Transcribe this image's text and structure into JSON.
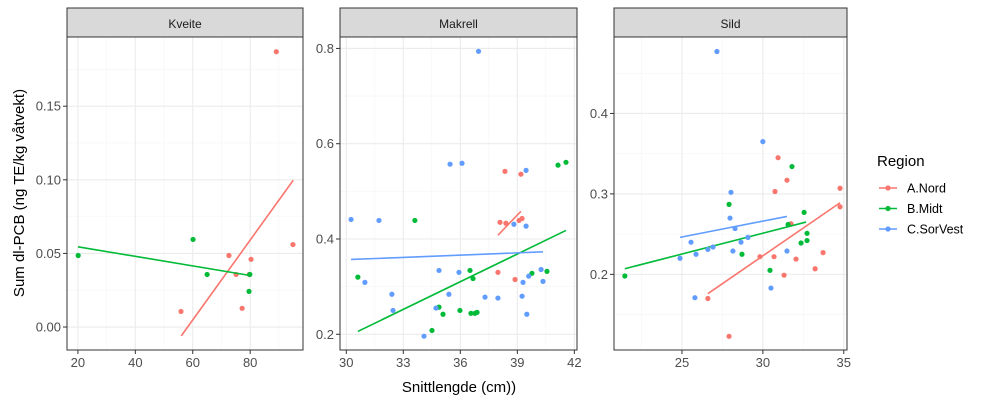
{
  "chart_data": [
    {
      "type": "scatter",
      "title": "Kveite",
      "xlim": [
        16.2,
        98.4
      ],
      "ylim": [
        -0.0156,
        0.197
      ],
      "xticks": [
        20,
        40,
        60,
        80
      ],
      "yticks": [
        0,
        0.05,
        0.1,
        0.15
      ],
      "ytick_labels": [
        "0.00",
        "0.05",
        "0.10",
        "0.15"
      ],
      "xminor": [
        30,
        50,
        70,
        90
      ],
      "yminor": [
        0.025,
        0.075,
        0.125,
        0.175
      ],
      "series": [
        {
          "name": "A.Nord",
          "points": [
            [
              89.1,
              0.187
            ],
            [
              94.9,
              0.056
            ],
            [
              72.6,
              0.0486
            ],
            [
              80.3,
              0.046
            ],
            [
              75.1,
              0.0357
            ],
            [
              79.7,
              0.0357
            ],
            [
              77.2,
              0.0127
            ],
            [
              55.9,
              0.0106
            ]
          ],
          "fit": [
            [
              56,
              -0.006
            ],
            [
              95,
              0.0997
            ]
          ]
        },
        {
          "name": "B.Midt",
          "points": [
            [
              20.1,
              0.0486
            ],
            [
              60.1,
              0.0595
            ],
            [
              65,
              0.0357
            ],
            [
              79.9,
              0.0357
            ],
            [
              79.6,
              0.0242
            ]
          ],
          "fit": [
            [
              20,
              0.0545
            ],
            [
              80,
              0.035
            ]
          ]
        },
        {
          "name": "C.SorVest",
          "points": [],
          "fit": null
        }
      ]
    },
    {
      "type": "scatter",
      "title": "Makrell",
      "xlim": [
        29.67,
        42.14
      ],
      "ylim": [
        0.167,
        0.824
      ],
      "xticks": [
        30,
        33,
        36,
        39,
        42
      ],
      "yticks": [
        0.2,
        0.4,
        0.6,
        0.8
      ],
      "ytick_labels": [
        "0.2",
        "0.4",
        "0.6",
        "0.8"
      ],
      "xminor": [
        31.5,
        34.5,
        37.5,
        40.5
      ],
      "yminor": [
        0.3,
        0.5,
        0.7
      ],
      "series": [
        {
          "name": "A.Nord",
          "points": [
            [
              38.35,
              0.542
            ],
            [
              39.19,
              0.536
            ],
            [
              38.09,
              0.435
            ],
            [
              38.4,
              0.433
            ],
            [
              39.09,
              0.439
            ],
            [
              39.25,
              0.443
            ],
            [
              37.98,
              0.33
            ],
            [
              38.88,
              0.315
            ]
          ],
          "fit": [
            [
              37.98,
              0.408
            ],
            [
              39.19,
              0.458
            ]
          ]
        },
        {
          "name": "B.Midt",
          "points": [
            [
              30.61,
              0.32
            ],
            [
              33.61,
              0.439
            ],
            [
              34.88,
              0.257
            ],
            [
              35.09,
              0.242
            ],
            [
              34.51,
              0.208
            ],
            [
              35.98,
              0.25
            ],
            [
              36.51,
              0.334
            ],
            [
              36.67,
              0.317
            ],
            [
              36.56,
              0.244
            ],
            [
              36.77,
              0.244
            ],
            [
              36.88,
              0.246
            ],
            [
              39.77,
              0.328
            ],
            [
              40.56,
              0.332
            ],
            [
              41.14,
              0.555
            ],
            [
              41.56,
              0.561
            ]
          ],
          "fit": [
            [
              30.61,
              0.206
            ],
            [
              41.56,
              0.418
            ]
          ]
        },
        {
          "name": "C.SorVest",
          "points": [
            [
              30.25,
              0.441
            ],
            [
              31.72,
              0.439
            ],
            [
              30.98,
              0.309
            ],
            [
              32.4,
              0.284
            ],
            [
              32.46,
              0.25
            ],
            [
              34.09,
              0.196
            ],
            [
              34.72,
              0.255
            ],
            [
              34.88,
              0.334
            ],
            [
              35.4,
              0.284
            ],
            [
              35.46,
              0.557
            ],
            [
              36.09,
              0.559
            ],
            [
              35.93,
              0.33
            ],
            [
              36.96,
              0.794
            ],
            [
              37.3,
              0.278
            ],
            [
              37.98,
              0.276
            ],
            [
              38.82,
              0.431
            ],
            [
              39.25,
              0.28
            ],
            [
              39.3,
              0.309
            ],
            [
              39.46,
              0.427
            ],
            [
              39.46,
              0.544
            ],
            [
              39.5,
              0.242
            ],
            [
              39.6,
              0.322
            ],
            [
              40.25,
              0.336
            ],
            [
              40.35,
              0.311
            ]
          ],
          "fit": [
            [
              30.25,
              0.357
            ],
            [
              40.35,
              0.373
            ]
          ]
        }
      ]
    },
    {
      "type": "scatter",
      "title": "Sild",
      "xlim": [
        20.8,
        35.2
      ],
      "ylim": [
        0.106,
        0.495
      ],
      "xticks": [
        25,
        30,
        35
      ],
      "yticks": [
        0.2,
        0.3,
        0.4
      ],
      "ytick_labels": [
        "0.2",
        "0.3",
        "0.4"
      ],
      "xminor": [
        22.5,
        27.5,
        32.5
      ],
      "yminor": [
        0.15,
        0.25,
        0.35,
        0.45
      ],
      "series": [
        {
          "name": "A.Nord",
          "points": [
            [
              30.94,
              0.345
            ],
            [
              31.49,
              0.317
            ],
            [
              30.75,
              0.303
            ],
            [
              34.77,
              0.307
            ],
            [
              34.77,
              0.284
            ],
            [
              31.74,
              0.263
            ],
            [
              29.82,
              0.222
            ],
            [
              30.69,
              0.222
            ],
            [
              32.05,
              0.219
            ],
            [
              33.72,
              0.227
            ],
            [
              33.23,
              0.207
            ],
            [
              31.31,
              0.199
            ],
            [
              26.6,
              0.17
            ],
            [
              27.91,
              0.123
            ]
          ],
          "fit": [
            [
              26.6,
              0.176
            ],
            [
              34.77,
              0.289
            ]
          ]
        },
        {
          "name": "B.Midt",
          "points": [
            [
              31.8,
              0.334
            ],
            [
              27.91,
              0.287
            ],
            [
              32.55,
              0.277
            ],
            [
              31.56,
              0.262
            ],
            [
              32.73,
              0.251
            ],
            [
              32.73,
              0.242
            ],
            [
              32.36,
              0.239
            ],
            [
              28.71,
              0.225
            ],
            [
              30.44,
              0.205
            ],
            [
              21.47,
              0.198
            ]
          ],
          "fit": [
            [
              21.47,
              0.207
            ],
            [
              32.67,
              0.265
            ]
          ]
        },
        {
          "name": "C.SorVest",
          "points": [
            [
              27.16,
              0.477
            ],
            [
              30.0,
              0.365
            ],
            [
              28.03,
              0.302
            ],
            [
              27.97,
              0.27
            ],
            [
              28.28,
              0.257
            ],
            [
              25.56,
              0.24
            ],
            [
              28.65,
              0.24
            ],
            [
              29.08,
              0.246
            ],
            [
              26.6,
              0.231
            ],
            [
              26.92,
              0.234
            ],
            [
              25.87,
              0.225
            ],
            [
              24.88,
              0.22
            ],
            [
              28.15,
              0.229
            ],
            [
              31.49,
              0.229
            ],
            [
              25.8,
              0.171
            ],
            [
              30.5,
              0.183
            ]
          ],
          "fit": [
            [
              24.88,
              0.246
            ],
            [
              31.49,
              0.272
            ]
          ]
        }
      ]
    }
  ],
  "xlabel": "Snittlengde (cm))",
  "ylabel": "Sum dl-PCB (ng TE/kg våtvekt)",
  "legend": {
    "title": "Region",
    "placement": "right",
    "items": [
      "A.Nord",
      "B.Midt",
      "C.SorVest"
    ]
  },
  "colors": {
    "A.Nord": "#F8766D",
    "B.Midt": "#00BA38",
    "C.SorVest": "#619CFF",
    "grid": "#EBEBEB",
    "strip": "#D9D9D9",
    "border": "#333333"
  }
}
